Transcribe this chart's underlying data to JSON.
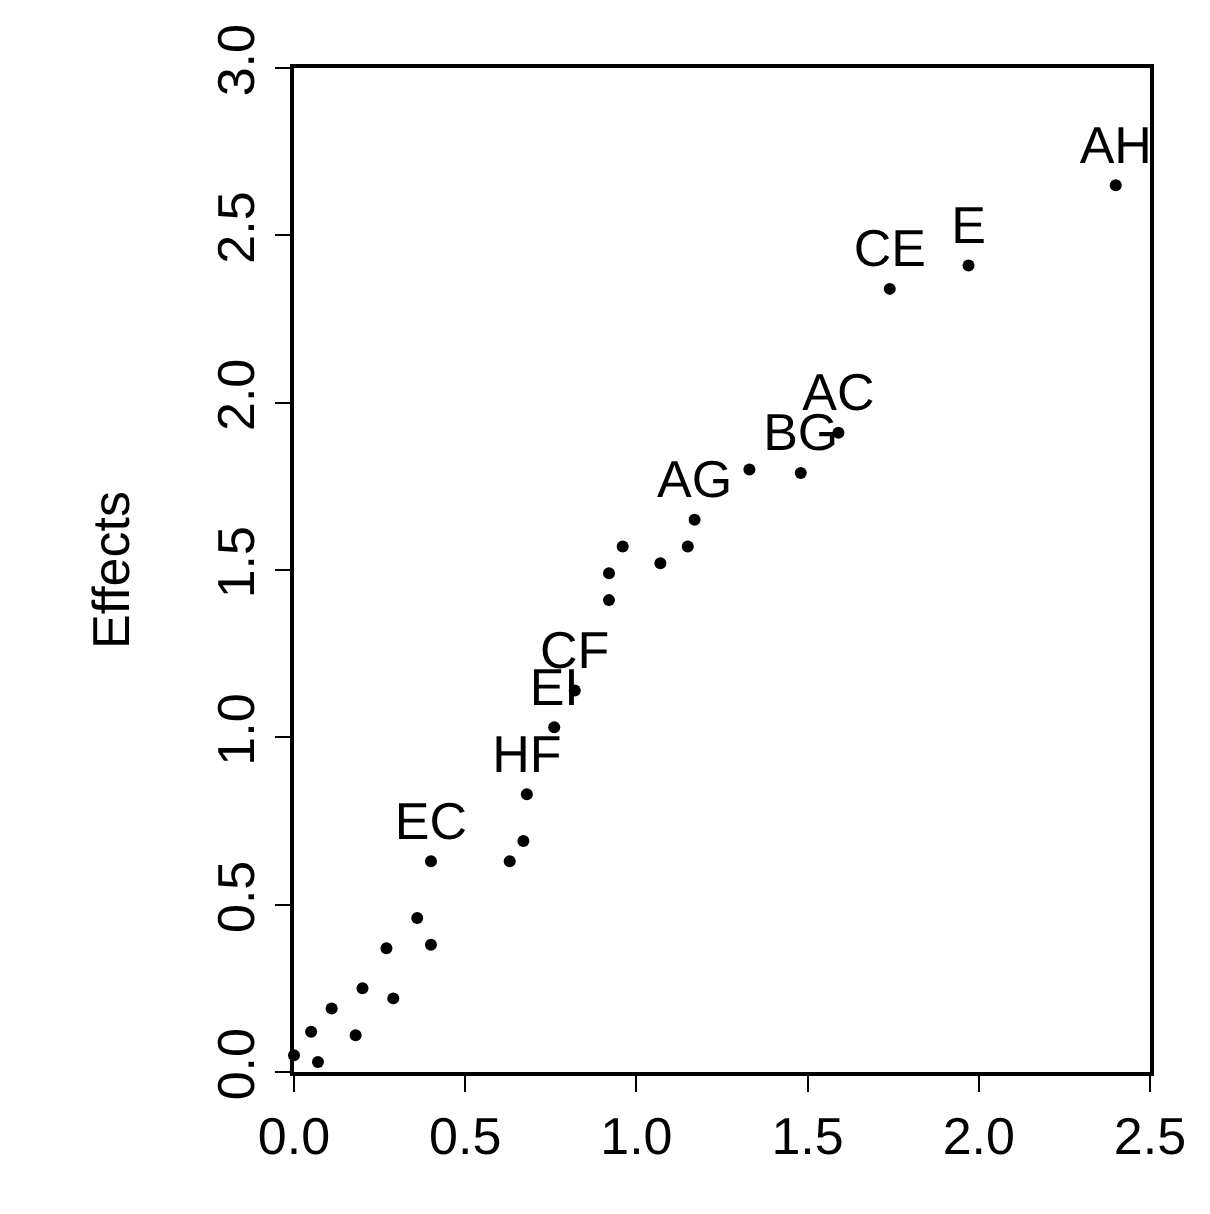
{
  "chart_data": {
    "type": "scatter",
    "ylabel": "Effects",
    "xlim": [
      0,
      2.5
    ],
    "ylim": [
      0,
      3
    ],
    "xticks": [
      {
        "value": 0,
        "label": "0.0"
      },
      0.5,
      {
        "value": 1,
        "label": "1.0"
      },
      1.5,
      {
        "value": 2,
        "label": "2.0"
      },
      2.5
    ],
    "yticks": [
      {
        "value": 0,
        "label": "0.0"
      },
      0.5,
      {
        "value": 1,
        "label": "1.0"
      },
      1.5,
      {
        "value": 2,
        "label": "2.0"
      },
      2.5,
      {
        "value": 3,
        "label": "3.0"
      }
    ],
    "marker": "circle",
    "series": [
      {
        "color": "#000000",
        "x": [
          0.0,
          0.07,
          0.05,
          0.18,
          0.11,
          0.29,
          0.2,
          0.27,
          0.4,
          0.36,
          0.4,
          0.63,
          0.67,
          0.68,
          0.76,
          0.82,
          0.92,
          0.92,
          0.96,
          1.07,
          1.15,
          1.17,
          1.33,
          1.48,
          1.59,
          1.74,
          1.97,
          2.4
        ],
        "values": [
          0.05,
          0.03,
          0.12,
          0.11,
          0.19,
          0.22,
          0.25,
          0.37,
          0.38,
          0.46,
          0.63,
          0.63,
          0.69,
          0.83,
          1.03,
          1.14,
          1.41,
          1.49,
          1.57,
          1.52,
          1.57,
          1.65,
          1.8,
          1.79,
          1.91,
          2.34,
          2.41,
          2.65
        ],
        "value_labels": [
          null,
          null,
          null,
          null,
          null,
          null,
          null,
          null,
          null,
          null,
          "EC",
          null,
          null,
          "HF",
          "EI",
          "CF",
          null,
          null,
          null,
          null,
          null,
          "AG",
          null,
          "BG",
          "AC",
          "CE",
          "E",
          "AH"
        ]
      }
    ]
  }
}
